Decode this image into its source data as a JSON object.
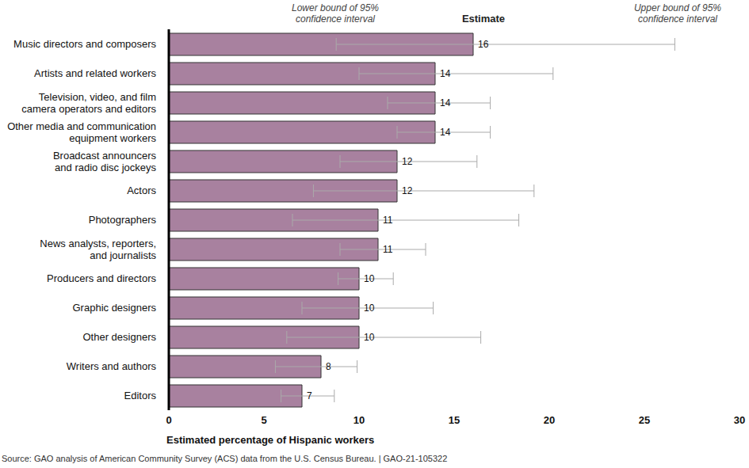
{
  "chart_data": {
    "type": "bar",
    "orientation": "horizontal",
    "categories": [
      "Music directors and composers",
      "Artists and related workers",
      "Television, video, and film camera operators and editors",
      "Other media and communication equipment workers",
      "Broadcast announcers and radio disc jockeys",
      "Actors",
      "Photographers",
      "News analysts, reporters, and journalists",
      "Producers and directors",
      "Graphic designers",
      "Other designers",
      "Writers and authors",
      "Editors"
    ],
    "values": [
      16,
      14,
      14,
      14,
      12,
      12,
      11,
      11,
      10,
      10,
      10,
      8,
      7
    ],
    "lower": [
      8.8,
      10,
      11.5,
      12,
      9,
      7.6,
      6.5,
      9,
      8.9,
      7,
      6.2,
      5.6,
      5.9
    ],
    "upper": [
      26.6,
      20.2,
      16.9,
      16.9,
      16.2,
      19.2,
      18.4,
      13.5,
      11.8,
      13.9,
      16.4,
      9.9,
      8.7
    ],
    "color": "#a8819f",
    "xlim": [
      0,
      30
    ],
    "xticks": [
      0,
      5,
      10,
      15,
      20,
      25,
      30
    ],
    "x_label": "Estimated percentage of Hispanic workers",
    "annotations": [
      "Lower bound of 95% confidence interval",
      "Estimate",
      "Upper bound of 95% confidence interval"
    ],
    "source": "Source: GAO analysis of American Community Survey (ACS) data from the U.S. Census Bureau. | GAO-21-105322",
    "data_labels": true,
    "grid": false
  }
}
